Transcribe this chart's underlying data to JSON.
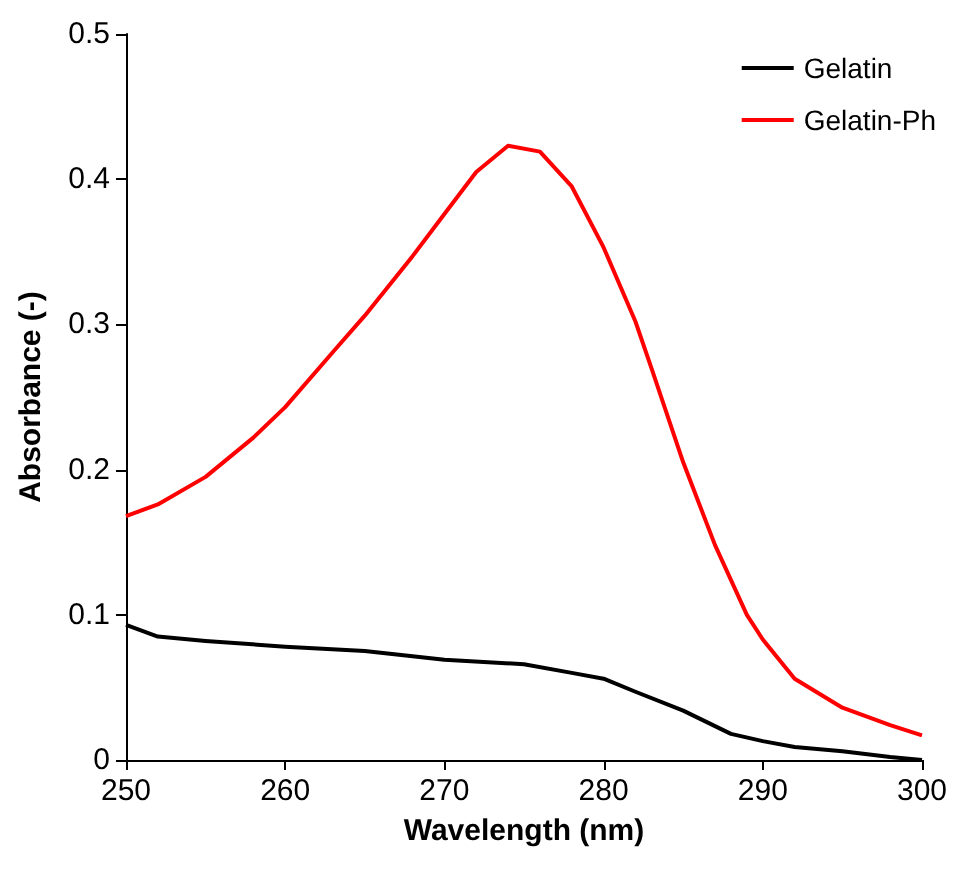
{
  "chart_data": {
    "type": "line",
    "xlabel": "Wavelength (nm)",
    "ylabel": "Absorbance (-)",
    "xlim": [
      250,
      300
    ],
    "xticks": [
      250,
      260,
      270,
      280,
      290,
      300
    ],
    "ylim": [
      0,
      0.5
    ],
    "yticks": [
      0,
      0.1,
      0.2,
      0.3,
      0.4,
      0.5
    ],
    "grid": false,
    "legend": "top right",
    "marker": "none",
    "line_style": "solid",
    "series": [
      {
        "name": "Gelatin",
        "color": "#000000",
        "x": [
          250,
          252,
          255,
          260,
          265,
          270,
          275,
          278,
          280,
          282,
          285,
          288,
          290,
          292,
          295,
          298,
          300
        ],
        "values": [
          0.093,
          0.085,
          0.082,
          0.078,
          0.075,
          0.069,
          0.066,
          0.06,
          0.056,
          0.047,
          0.034,
          0.018,
          0.013,
          0.009,
          0.006,
          0.002,
          0
        ]
      },
      {
        "name": "Gelatin-Ph",
        "color": "#ff0000",
        "x": [
          250,
          252,
          255,
          258,
          260,
          263,
          265,
          268,
          270,
          272,
          274,
          276,
          278,
          280,
          282,
          283,
          285,
          287,
          289,
          290,
          292,
          295,
          298,
          300
        ],
        "values": [
          0.168,
          0.176,
          0.195,
          0.222,
          0.243,
          0.281,
          0.306,
          0.347,
          0.376,
          0.405,
          0.423,
          0.419,
          0.395,
          0.353,
          0.302,
          0.27,
          0.205,
          0.148,
          0.1,
          0.083,
          0.056,
          0.036,
          0.024,
          0.017
        ]
      }
    ]
  }
}
